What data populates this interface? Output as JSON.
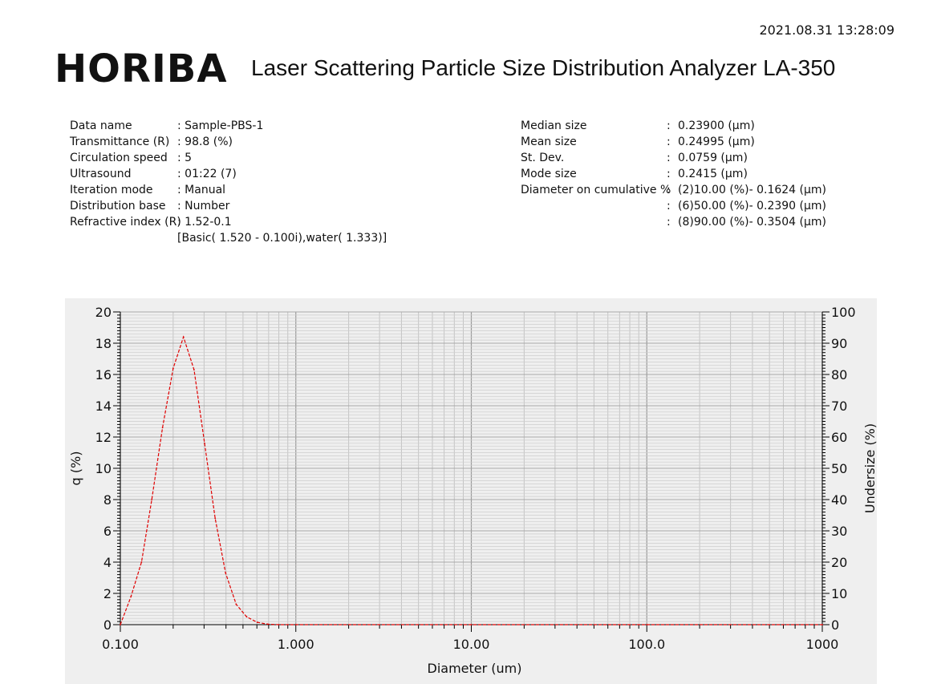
{
  "header": {
    "timestamp": "2021.08.31 13:28:09",
    "brand": "HORIBA",
    "title": "Laser Scattering Particle Size Distribution Analyzer LA-350"
  },
  "info_left": [
    {
      "label": "Data name",
      "value": ": Sample-PBS-1"
    },
    {
      "label": "Transmittance (R)",
      "value": ":  98.8 (%)"
    },
    {
      "label": "Circulation speed",
      "value": ": 5"
    },
    {
      "label": "Ultrasound",
      "value": ": 01:22 (7)"
    },
    {
      "label": "Iteration mode",
      "value": ": Manual"
    },
    {
      "label": "Distribution base",
      "value": ": Number"
    },
    {
      "label": "Refractive index (R)",
      "value": ": 1.52-0.1"
    },
    {
      "label": "",
      "value": "  [Basic( 1.520 -  0.100i),water( 1.333)]"
    }
  ],
  "info_right": [
    {
      "label": "Median size",
      "sep": ":",
      "value": " 0.23900 (μm)"
    },
    {
      "label": "Mean size",
      "sep": ":",
      "value": " 0.24995 (μm)"
    },
    {
      "label": "St. Dev.",
      "sep": ":",
      "value": "  0.0759 (μm)"
    },
    {
      "label": "Mode size",
      "sep": ":",
      "value": "  0.2415 (μm)"
    },
    {
      "label": "Diameter on cumulative %",
      "sep": ":",
      "value": "(2)10.00 (%)-   0.1624 (μm)"
    },
    {
      "label": "",
      "sep": ":",
      "value": "(6)50.00 (%)-   0.2390 (μm)"
    },
    {
      "label": "",
      "sep": ":",
      "value": "(8)90.00 (%)-   0.3504 (μm)"
    }
  ],
  "chart_data": {
    "type": "line",
    "x_scale": "log",
    "xlim": [
      0.1,
      1000
    ],
    "ylim": [
      0,
      20
    ],
    "y2lim": [
      0,
      100
    ],
    "xlabel": "Diameter (um)",
    "ylabel": "q (%)",
    "y2label": "Undersize (%)",
    "x_ticks": [
      "0.100",
      "1.000",
      "10.00",
      "100.0",
      "1000"
    ],
    "y_ticks": [
      "0",
      "2",
      "4",
      "6",
      "8",
      "10",
      "12",
      "14",
      "16",
      "18",
      "20"
    ],
    "y2_ticks": [
      "0",
      "10",
      "20",
      "30",
      "40",
      "50",
      "60",
      "70",
      "80",
      "90",
      "100"
    ],
    "grid": true,
    "line_color": "#e00000",
    "series": [
      {
        "x": [
          0.1,
          0.115,
          0.132,
          0.151,
          0.174,
          0.2,
          0.229,
          0.263,
          0.302,
          0.347,
          0.398,
          0.457,
          0.525,
          0.603,
          0.692,
          0.8,
          1.0,
          10.0,
          100.0,
          1000.0
        ],
        "values": [
          0.0,
          1.8,
          4.0,
          8.0,
          12.6,
          16.4,
          18.4,
          16.3,
          11.6,
          6.8,
          3.3,
          1.3,
          0.5,
          0.15,
          0.03,
          0.0,
          0.0,
          0.0,
          0.0,
          0.0
        ]
      }
    ]
  }
}
